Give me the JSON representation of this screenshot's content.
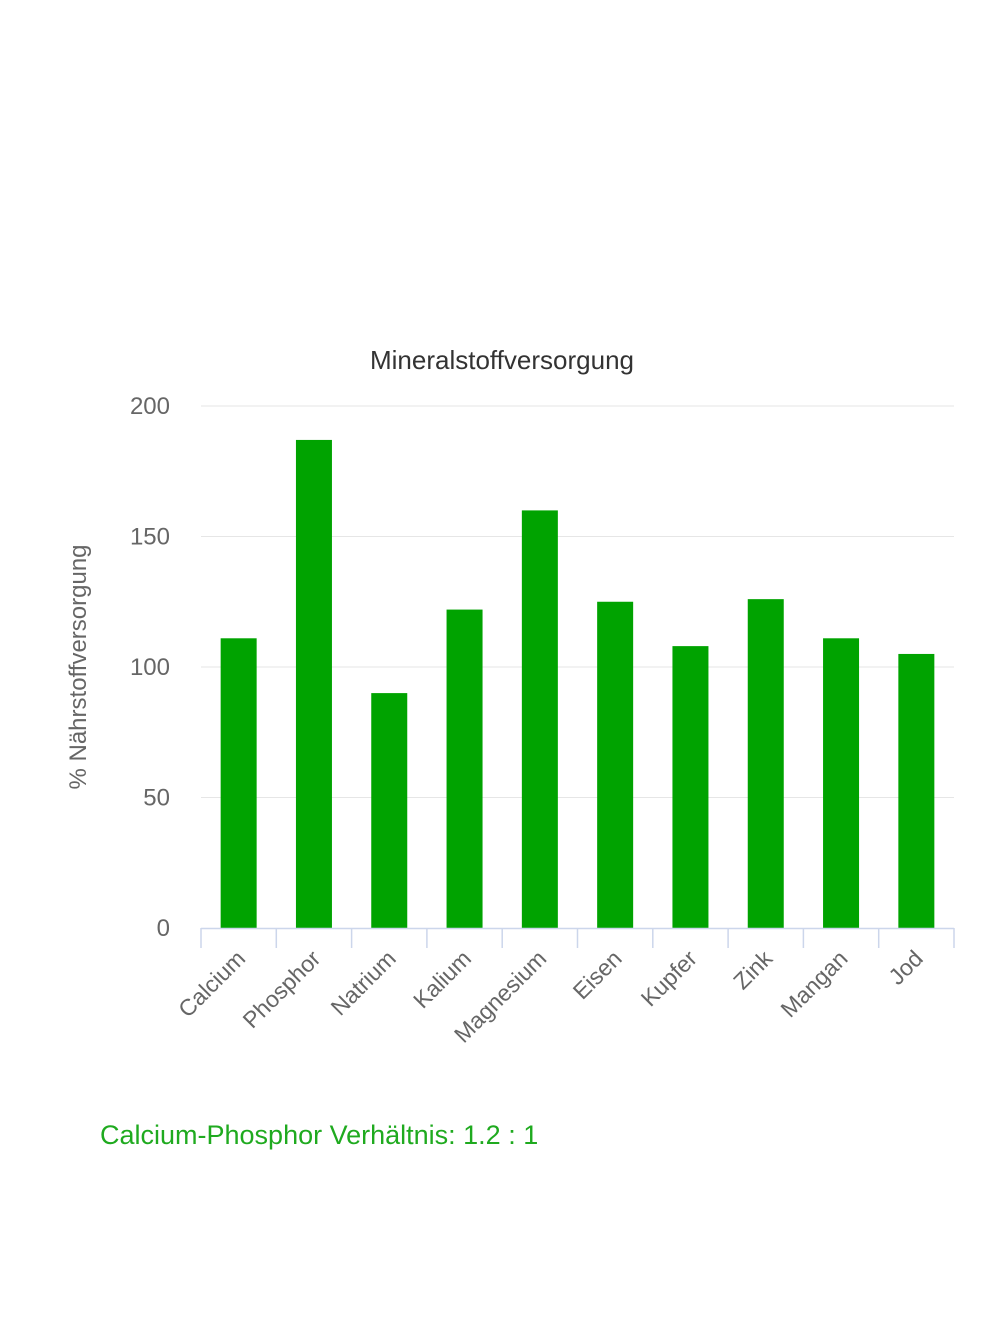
{
  "chart_data": {
    "type": "bar",
    "title": "Mineralstoffversorgung",
    "xlabel": "",
    "ylabel": "% Nährstoffversorgung",
    "categories": [
      "Calcium",
      "Phosphor",
      "Natrium",
      "Kalium",
      "Magnesium",
      "Eisen",
      "Kupfer",
      "Zink",
      "Mangan",
      "Jod"
    ],
    "values": [
      111,
      187,
      90,
      122,
      160,
      125,
      108,
      126,
      111,
      105
    ],
    "ylim": [
      0,
      200
    ],
    "yticks": [
      0,
      50,
      100,
      150,
      200
    ],
    "grid": true,
    "bar_color": "#00a300",
    "grid_color": "#e6e6e6",
    "axis_color": "#ccd6eb"
  },
  "footer": {
    "ratio_text": "Calcium-Phosphor Verhältnis: 1.2 : 1",
    "ratio_color": "#1faa1f"
  }
}
